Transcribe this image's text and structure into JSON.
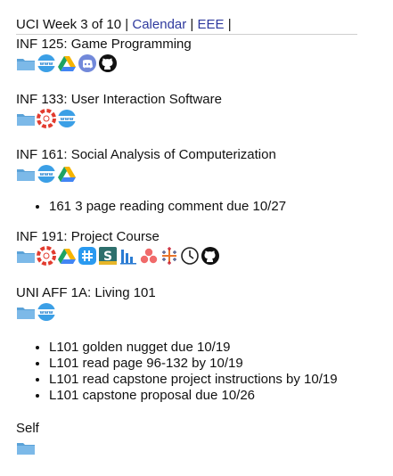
{
  "header": {
    "week": "UCI Week 3 of 10",
    "sep": "|",
    "calendar": "Calendar",
    "eee": "EEE"
  },
  "courses": [
    {
      "title": "INF 125: Game Programming",
      "icons": [
        "folder-icon",
        "web-icon",
        "google-drive-icon",
        "discord-icon",
        "github-icon"
      ]
    },
    {
      "title": "INF 133: User Interaction Software",
      "icons": [
        "folder-icon",
        "lifesaver-icon",
        "web-icon"
      ]
    },
    {
      "title": "INF 161: Social Analysis of Computerization",
      "icons": [
        "folder-icon",
        "web-icon",
        "google-drive-icon"
      ],
      "tasks": [
        "161 3 page reading comment due 10/27"
      ]
    },
    {
      "title": "INF 191: Project Course",
      "icons": [
        "folder-icon",
        "lifesaver-icon",
        "google-drive-icon",
        "hash-chat-icon",
        "slack-icon",
        "chart-bars-icon",
        "asana-icon",
        "tableau-icon",
        "clock-icon",
        "github-icon"
      ]
    },
    {
      "title": "UNI AFF 1A: Living 101",
      "icons": [
        "folder-icon",
        "web-icon"
      ],
      "tasks": [
        "L101 golden nugget due 10/19",
        "L101 read page 96-132 by 10/19",
        "L101 read capstone project instructions by 10/19",
        "L101 capstone proposal due 10/26"
      ]
    },
    {
      "title": "Self",
      "icons": [
        "folder-icon"
      ]
    }
  ]
}
